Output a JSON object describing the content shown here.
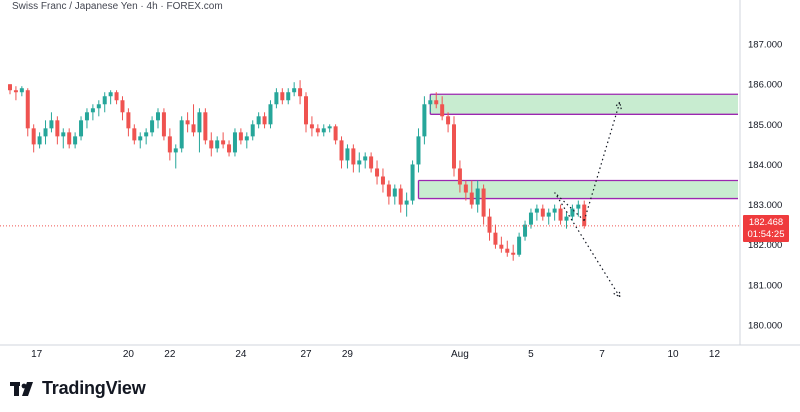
{
  "chart_title": "Swiss Franc / Japanese Yen · 4h · FOREX.com",
  "brand": "TradingView",
  "last_price": "182.468",
  "countdown": "01:54:25",
  "colors": {
    "up": "#26a69a",
    "down": "#ef5350",
    "zone_fill": "#c8ecd0",
    "zone_border": "#9c27b0",
    "price_line": "#ef5350"
  },
  "chart_data": {
    "type": "candlestick",
    "title": "Swiss Franc / Japanese Yen · 4h · FOREX.com",
    "ylim": [
      179.5,
      187.7
    ],
    "y_ticks": [
      187.0,
      186.0,
      185.0,
      184.0,
      183.0,
      182.0,
      181.0,
      180.0
    ],
    "y_tick_labels": [
      "187.000",
      "186.000",
      "185.000",
      "184.000",
      "183.000",
      "182.000",
      "181.000",
      "180.000"
    ],
    "x_tick_labels": [
      "17",
      "20",
      "22",
      "24",
      "27",
      "29",
      "Aug",
      "5",
      "7",
      "10",
      "12"
    ],
    "x_tick_bar_index": [
      4.5,
      20,
      27,
      39,
      50,
      57,
      76,
      88,
      100,
      112,
      119
    ],
    "grid": false,
    "last_price": 182.468,
    "candles": [
      [
        186.0,
        186.0,
        185.75,
        185.85
      ],
      [
        185.85,
        185.95,
        185.6,
        185.8
      ],
      [
        185.8,
        185.95,
        185.7,
        185.9
      ],
      [
        185.85,
        185.9,
        184.7,
        184.9
      ],
      [
        184.9,
        185.0,
        184.3,
        184.5
      ],
      [
        184.5,
        184.8,
        184.4,
        184.7
      ],
      [
        184.7,
        185.1,
        184.5,
        184.9
      ],
      [
        184.9,
        185.3,
        184.8,
        185.1
      ],
      [
        185.1,
        185.2,
        184.5,
        184.7
      ],
      [
        184.7,
        184.9,
        184.4,
        184.8
      ],
      [
        184.8,
        184.9,
        184.4,
        184.5
      ],
      [
        184.5,
        184.8,
        184.4,
        184.7
      ],
      [
        184.7,
        185.2,
        184.6,
        185.1
      ],
      [
        185.1,
        185.4,
        184.9,
        185.3
      ],
      [
        185.3,
        185.5,
        185.1,
        185.4
      ],
      [
        185.4,
        185.6,
        185.2,
        185.5
      ],
      [
        185.5,
        185.8,
        185.3,
        185.7
      ],
      [
        185.7,
        185.85,
        185.5,
        185.8
      ],
      [
        185.8,
        185.85,
        185.5,
        185.6
      ],
      [
        185.6,
        185.7,
        185.1,
        185.3
      ],
      [
        185.3,
        185.4,
        184.7,
        184.9
      ],
      [
        184.9,
        185.0,
        184.5,
        184.6
      ],
      [
        184.6,
        184.8,
        184.4,
        184.7
      ],
      [
        184.7,
        184.9,
        184.5,
        184.8
      ],
      [
        184.8,
        185.2,
        184.7,
        185.1
      ],
      [
        185.1,
        185.4,
        184.9,
        185.3
      ],
      [
        185.3,
        185.4,
        184.6,
        184.7
      ],
      [
        184.7,
        184.9,
        184.1,
        184.3
      ],
      [
        184.3,
        184.5,
        183.9,
        184.4
      ],
      [
        184.4,
        185.2,
        184.3,
        185.1
      ],
      [
        185.1,
        185.3,
        184.8,
        185.0
      ],
      [
        185.0,
        185.5,
        184.7,
        184.8
      ],
      [
        184.8,
        185.4,
        184.3,
        185.3
      ],
      [
        185.3,
        185.4,
        184.5,
        184.6
      ],
      [
        184.6,
        184.8,
        184.2,
        184.4
      ],
      [
        184.4,
        184.7,
        184.3,
        184.6
      ],
      [
        184.6,
        184.8,
        184.4,
        184.5
      ],
      [
        184.5,
        184.6,
        184.2,
        184.3
      ],
      [
        184.3,
        184.9,
        184.2,
        184.8
      ],
      [
        184.8,
        184.9,
        184.5,
        184.6
      ],
      [
        184.6,
        184.8,
        184.4,
        184.7
      ],
      [
        184.7,
        185.1,
        184.6,
        185.0
      ],
      [
        185.0,
        185.3,
        184.9,
        185.2
      ],
      [
        185.2,
        185.3,
        184.9,
        185.0
      ],
      [
        185.0,
        185.6,
        184.9,
        185.5
      ],
      [
        185.5,
        185.9,
        185.4,
        185.8
      ],
      [
        185.8,
        185.9,
        185.5,
        185.6
      ],
      [
        185.6,
        185.9,
        185.5,
        185.8
      ],
      [
        185.8,
        186.05,
        185.7,
        185.9
      ],
      [
        185.9,
        186.1,
        185.5,
        185.7
      ],
      [
        185.7,
        185.8,
        184.8,
        185.0
      ],
      [
        185.0,
        185.2,
        184.7,
        184.9
      ],
      [
        184.9,
        185.0,
        184.7,
        184.8
      ],
      [
        184.8,
        185.0,
        184.7,
        184.9
      ],
      [
        184.9,
        185.0,
        184.8,
        184.95
      ],
      [
        184.95,
        185.0,
        184.5,
        184.6
      ],
      [
        184.6,
        184.7,
        183.9,
        184.1
      ],
      [
        184.1,
        184.5,
        183.9,
        184.4
      ],
      [
        184.4,
        184.5,
        183.8,
        184.0
      ],
      [
        184.0,
        184.3,
        183.8,
        184.1
      ],
      [
        184.1,
        184.3,
        183.9,
        184.2
      ],
      [
        184.2,
        184.3,
        183.8,
        183.9
      ],
      [
        183.9,
        184.1,
        183.5,
        183.7
      ],
      [
        183.7,
        183.9,
        183.3,
        183.5
      ],
      [
        183.5,
        183.6,
        183.0,
        183.2
      ],
      [
        183.2,
        183.5,
        183.0,
        183.4
      ],
      [
        183.4,
        183.5,
        182.8,
        183.0
      ],
      [
        183.0,
        183.3,
        182.7,
        183.1
      ],
      [
        183.1,
        184.1,
        183.0,
        184.0
      ],
      [
        184.0,
        184.9,
        183.8,
        184.7
      ],
      [
        184.7,
        185.7,
        184.5,
        185.5
      ],
      [
        185.5,
        185.7,
        185.3,
        185.6
      ],
      [
        185.6,
        185.8,
        185.4,
        185.5
      ],
      [
        185.5,
        185.7,
        185.1,
        185.2
      ],
      [
        185.2,
        185.3,
        184.8,
        185.0
      ],
      [
        185.0,
        185.2,
        183.7,
        183.9
      ],
      [
        183.9,
        184.1,
        183.3,
        183.5
      ],
      [
        183.5,
        183.6,
        183.1,
        183.3
      ],
      [
        183.3,
        183.6,
        182.9,
        183.0
      ],
      [
        183.0,
        183.6,
        182.8,
        183.4
      ],
      [
        183.4,
        183.5,
        182.5,
        182.7
      ],
      [
        182.7,
        182.9,
        182.1,
        182.3
      ],
      [
        182.3,
        182.5,
        181.9,
        182.0
      ],
      [
        182.0,
        182.2,
        181.8,
        181.9
      ],
      [
        181.9,
        182.1,
        181.7,
        181.8
      ],
      [
        181.8,
        182.0,
        181.6,
        181.75
      ],
      [
        181.75,
        182.3,
        181.7,
        182.2
      ],
      [
        182.2,
        182.6,
        182.1,
        182.5
      ],
      [
        182.5,
        182.9,
        182.4,
        182.8
      ],
      [
        182.8,
        183.0,
        182.6,
        182.9
      ],
      [
        182.9,
        183.0,
        182.6,
        182.7
      ],
      [
        182.7,
        182.9,
        182.5,
        182.8
      ],
      [
        182.8,
        183.0,
        182.6,
        182.9
      ],
      [
        182.9,
        183.0,
        182.5,
        182.6
      ],
      [
        182.6,
        182.8,
        182.4,
        182.7
      ],
      [
        182.7,
        183.0,
        182.6,
        182.9
      ],
      [
        182.9,
        183.1,
        182.7,
        183.0
      ],
      [
        183.0,
        183.1,
        182.4,
        182.468
      ]
    ]
  },
  "zones": [
    {
      "top": 185.75,
      "bottom": 185.25,
      "from_bar": 71,
      "to_bar": 125
    },
    {
      "top": 183.6,
      "bottom": 183.15,
      "from_bar": 69,
      "to_bar": 125
    }
  ],
  "projections": [
    {
      "points": [
        [
          97,
          182.6
        ],
        [
          103,
          185.55
        ]
      ]
    },
    {
      "points": [
        [
          97,
          182.6
        ],
        [
          92,
          183.3
        ],
        [
          103,
          180.7
        ]
      ]
    }
  ]
}
